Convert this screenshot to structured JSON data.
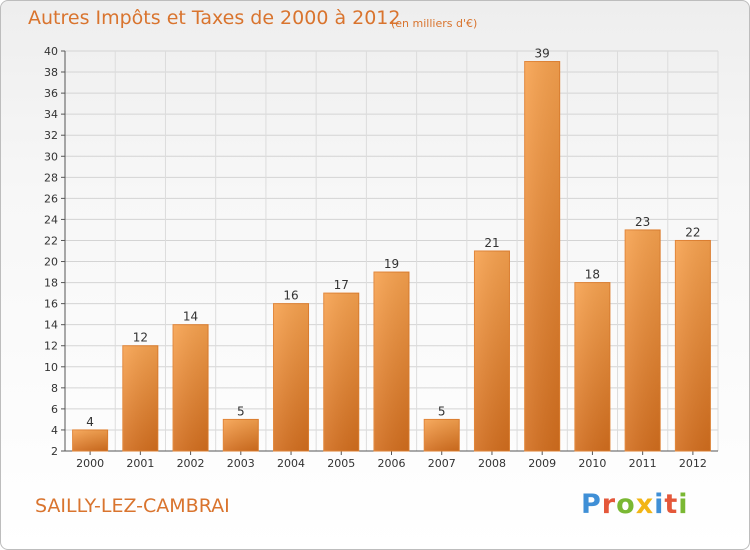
{
  "title": "Autres Impôts et Taxes de 2000 à 2012",
  "subtitle": "(en milliers d'€)",
  "commune": "SAILLY-LEZ-CAMBRAI",
  "logo": {
    "letters": [
      "P",
      "r",
      "o",
      "x",
      "i",
      "t",
      "i"
    ],
    "colors": [
      "#3f8fd6",
      "#e4573a",
      "#7ab833",
      "#f2b515",
      "#3f8fd6",
      "#e4573a",
      "#7ab833"
    ]
  },
  "chart_data": {
    "type": "bar",
    "title": "Autres Impôts et Taxes de 2000 à 2012",
    "subtitle": "(en milliers d'€)",
    "categories": [
      "2000",
      "2001",
      "2002",
      "2003",
      "2004",
      "2005",
      "2006",
      "2007",
      "2008",
      "2009",
      "2010",
      "2011",
      "2012"
    ],
    "values": [
      4,
      12,
      14,
      5,
      16,
      17,
      19,
      5,
      21,
      39,
      18,
      23,
      22
    ],
    "ylim": [
      2,
      40
    ],
    "yticks": [
      2,
      4,
      6,
      8,
      10,
      12,
      14,
      16,
      18,
      20,
      22,
      24,
      26,
      28,
      30,
      32,
      34,
      36,
      38,
      40
    ],
    "grid": true,
    "bar_color": "#f0903a"
  }
}
